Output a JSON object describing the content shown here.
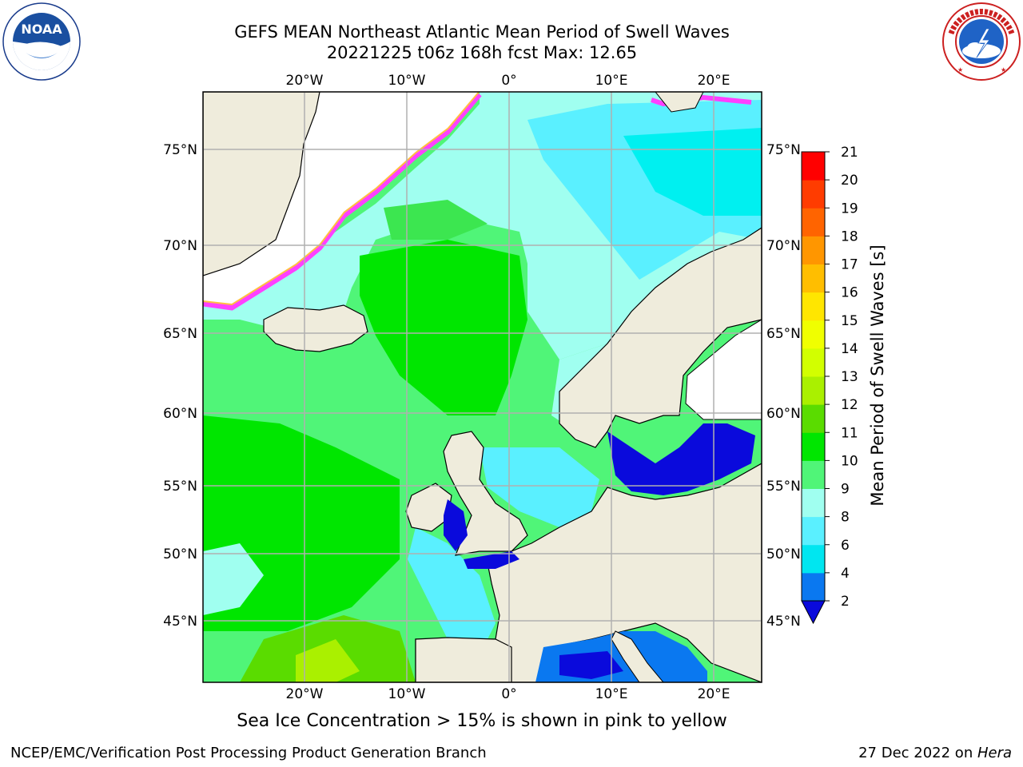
{
  "header": {
    "title_line1": "GEFS MEAN Northeast Atlantic Mean Period of Swell Waves",
    "title_line2": "20221225 t06z 168h fcst   Max: 12.65"
  },
  "logos": {
    "noaa": {
      "text": "NOAA",
      "ring_text": "NATIONAL OCEANIC AND ATMOSPHERIC ADMINISTRATION · U.S. DEPARTMENT OF COMMERCE"
    },
    "nws": {
      "ring_text": "NATIONAL WEATHER SERVICE"
    }
  },
  "map": {
    "lon_ticks_top": [
      "20°W",
      "10°W",
      "0°",
      "10°E",
      "20°E"
    ],
    "lon_ticks_bottom": [
      "20°W",
      "10°W",
      "0°",
      "10°E",
      "20°E"
    ],
    "lat_ticks_left": [
      "75°N",
      "70°N",
      "65°N",
      "60°N",
      "55°N",
      "50°N",
      "45°N"
    ],
    "lat_ticks_right": [
      "75°N",
      "70°N",
      "65°N",
      "60°N",
      "55°N",
      "50°N",
      "45°N"
    ],
    "colors": {
      "land": "#efecdc",
      "sea_ice_white": "#ffffff",
      "grid": "#b0b0b0"
    }
  },
  "colorbar": {
    "label": "Mean Period of Swell Waves [s]",
    "ticks": [
      "2",
      "4",
      "6",
      "8",
      "9",
      "10",
      "11",
      "12",
      "13",
      "14",
      "15",
      "16",
      "17",
      "18",
      "19",
      "20",
      "21"
    ],
    "colors": [
      "#0a0adc",
      "#0a78f0",
      "#00e6f0",
      "#5af0ff",
      "#a0fff0",
      "#50f578",
      "#00e600",
      "#5adc00",
      "#aaf000",
      "#d2ff00",
      "#f0ff00",
      "#ffe600",
      "#ffbe00",
      "#ff9600",
      "#ff6400",
      "#ff3c00",
      "#ff0000"
    ]
  },
  "footer": {
    "note": "Sea Ice Concentration > 15% is shown in pink to yellow",
    "credit_left": "NCEP/EMC/Verification Post Processing Product Generation Branch",
    "credit_date": "27 Dec 2022 on ",
    "credit_machine": "Hera"
  }
}
